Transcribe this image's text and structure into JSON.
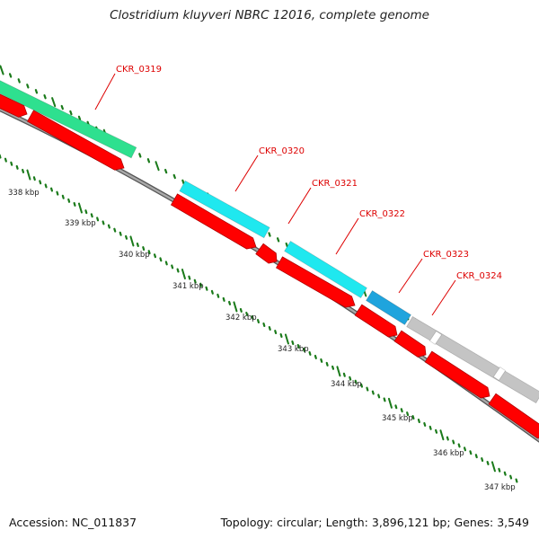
{
  "title": "Clostridium kluyveri NBRC 12016, complete genome",
  "footer": {
    "accession": "Accession: NC_011837",
    "summary": "Topology: circular; Length: 3,896,121 bp; Genes: 3,549"
  },
  "scale_labels": [
    "338 kbp",
    "339 kbp",
    "340 kbp",
    "341 kbp",
    "342 kbp",
    "343 kbp",
    "344 kbp",
    "345 kbp",
    "346 kbp",
    "347 kbp"
  ],
  "genes": [
    {
      "id": "CKR_0319",
      "color": "#2ee08f"
    },
    {
      "id": "CKR_0320",
      "color": "#1fe8ef"
    },
    {
      "id": "CKR_0321",
      "color": "#1fe8ef"
    },
    {
      "id": "CKR_0322",
      "color": "#1fe8ef"
    },
    {
      "id": "CKR_0323",
      "color": "#1fa4dd"
    },
    {
      "id": "CKR_0324",
      "color": "#c4c4c4"
    }
  ],
  "colors": {
    "cds": "#ff0000",
    "backbone": "#8a8a8a",
    "ticks": "#1a7a1a",
    "label": "#dd0000"
  }
}
